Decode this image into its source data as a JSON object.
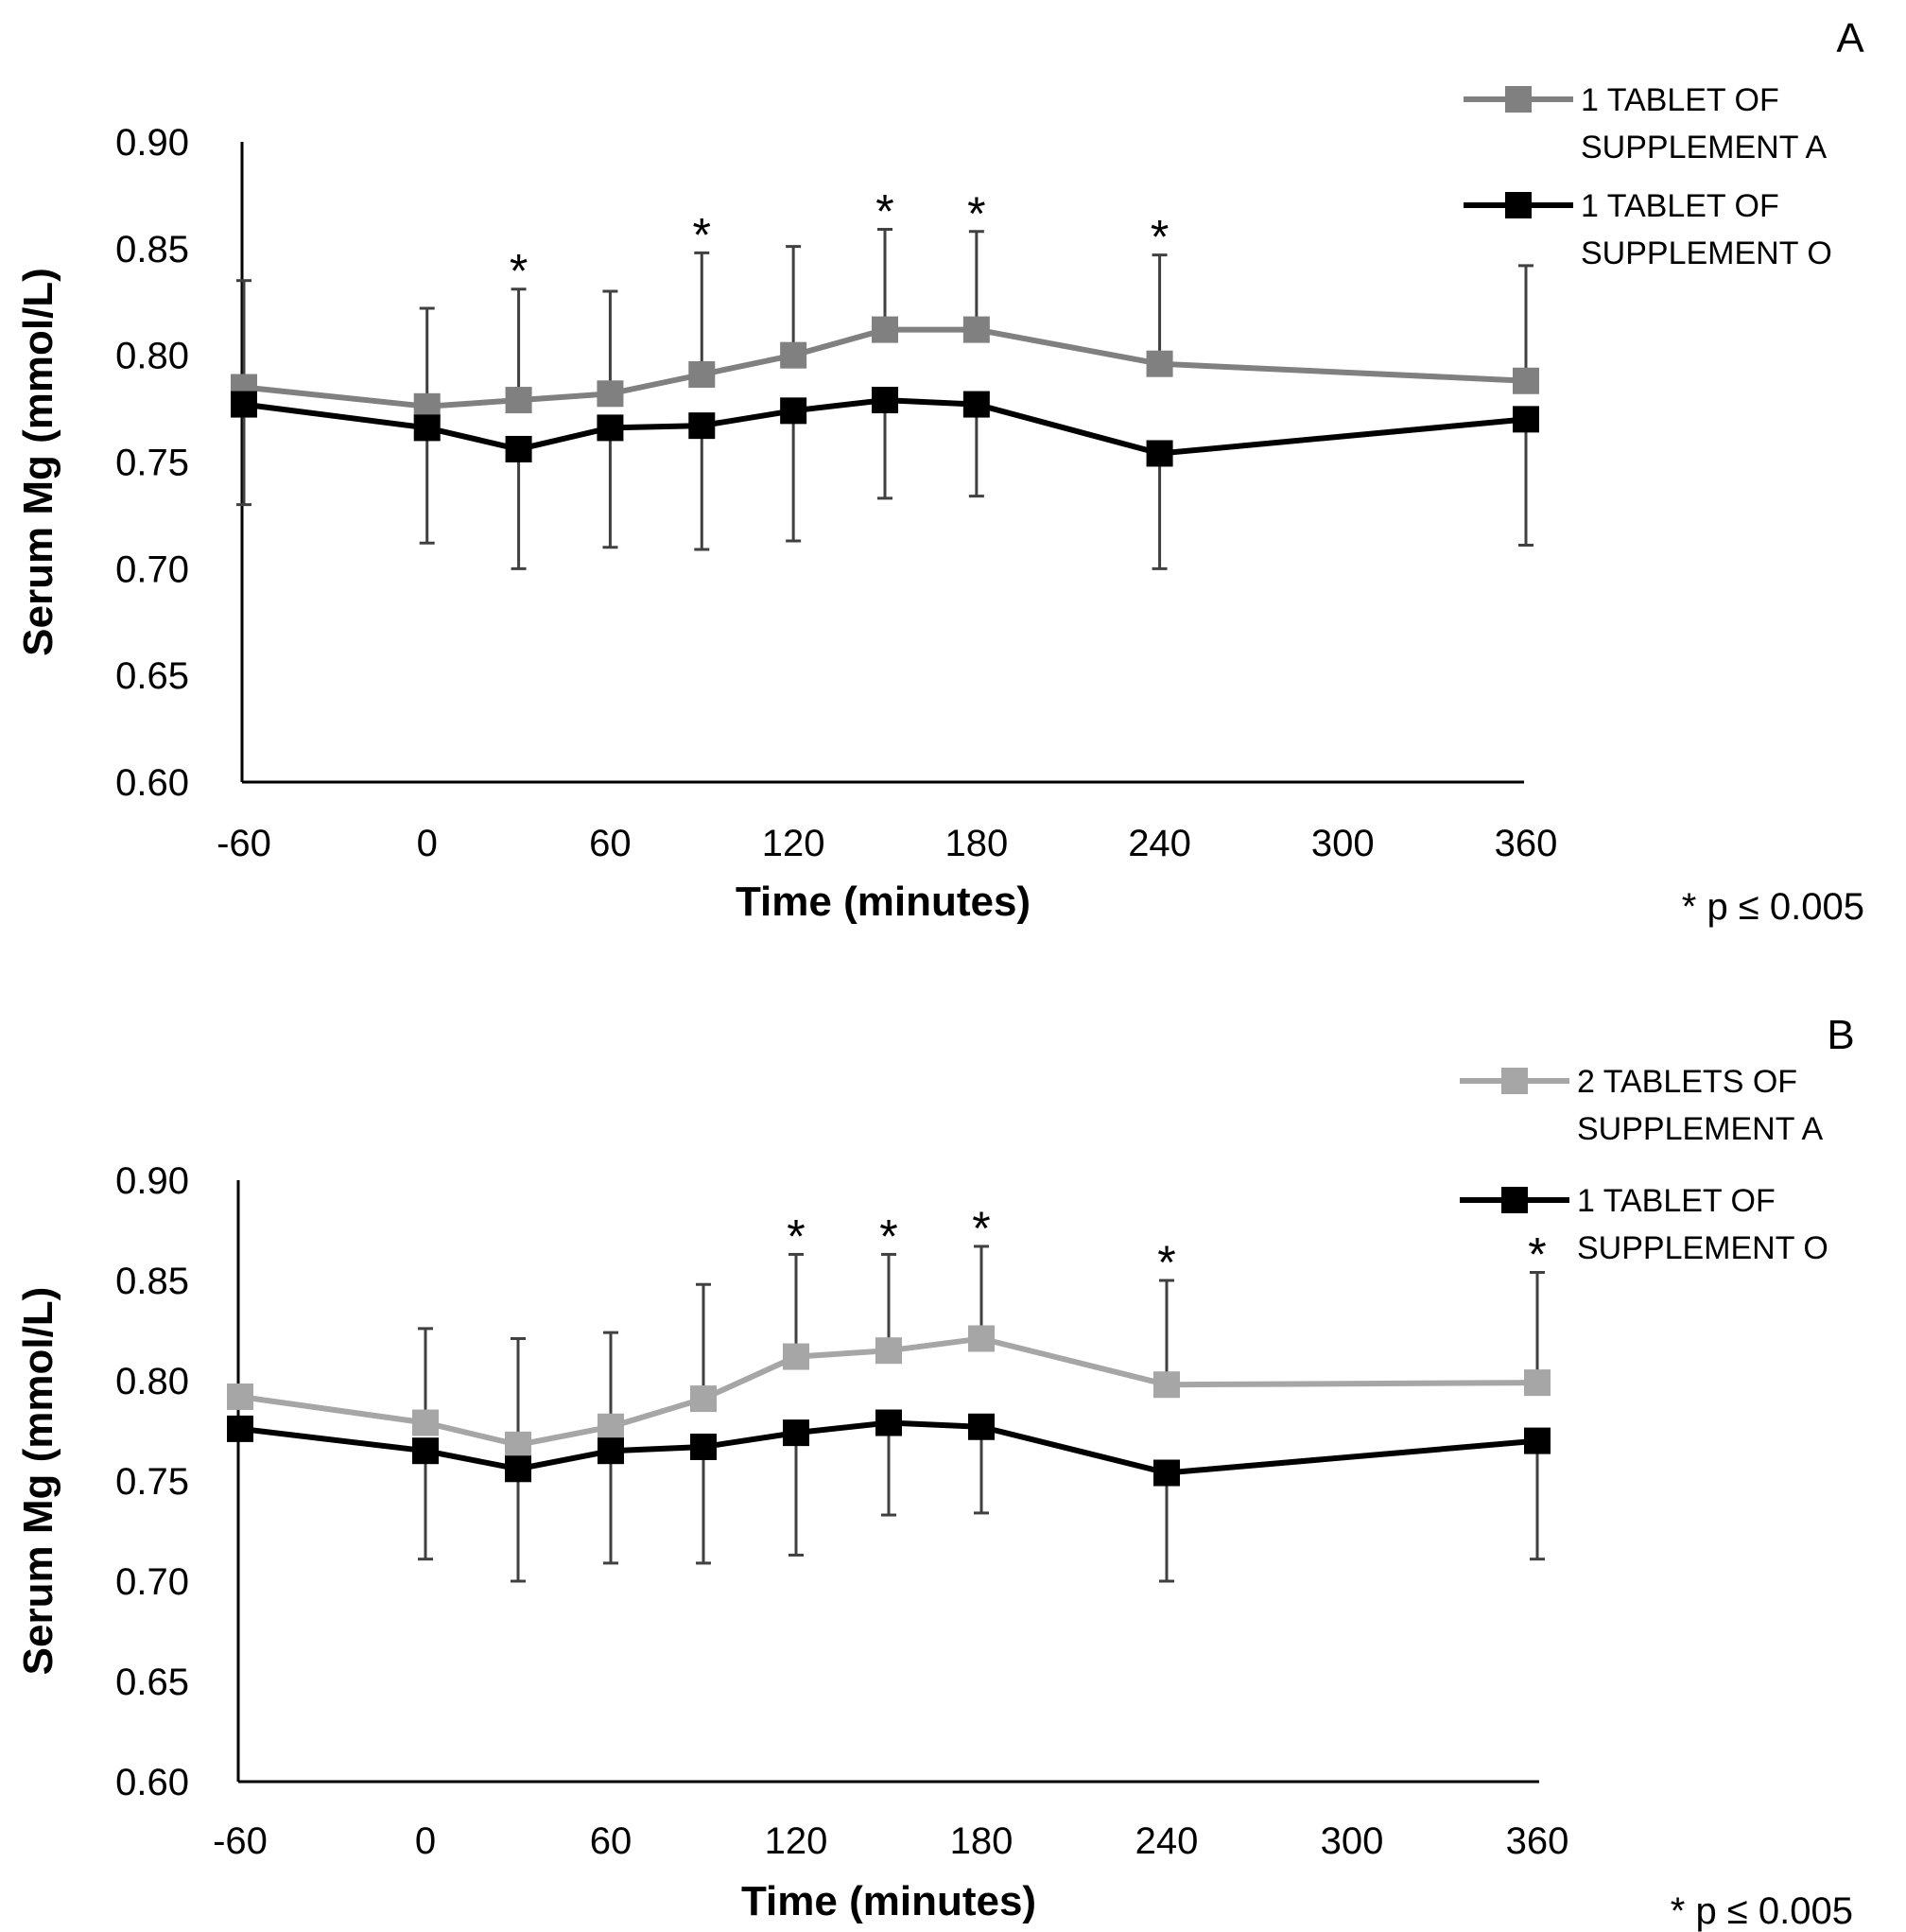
{
  "chart_data": [
    {
      "type": "line",
      "panel_label": "A",
      "xlabel": "Time (minutes)",
      "ylabel": "Serum Mg (mmol/L)",
      "xlim": [
        -60,
        360
      ],
      "ylim": [
        0.6,
        0.9
      ],
      "x_ticks": [
        "-60",
        "0",
        "60",
        "120",
        "180",
        "240",
        "300",
        "360"
      ],
      "y_ticks": [
        "0.60",
        "0.65",
        "0.70",
        "0.75",
        "0.80",
        "0.85",
        "0.90"
      ],
      "x": [
        -60,
        0,
        30,
        60,
        90,
        120,
        150,
        180,
        240,
        360
      ],
      "series": [
        {
          "name": "1 TABLET OF SUPPLEMENT A",
          "legend_lines": [
            "1 TABLET OF",
            "SUPPLEMENT A"
          ],
          "color": "#808080",
          "values": [
            0.785,
            0.776,
            0.779,
            0.782,
            0.791,
            0.8,
            0.812,
            0.812,
            0.796,
            0.788
          ],
          "error": [
            0.05,
            0.046,
            0.052,
            0.048,
            0.057,
            0.051,
            0.047,
            0.046,
            0.051,
            0.054
          ],
          "error_side": "up"
        },
        {
          "name": "1 TABLET OF SUPPLEMENT O",
          "legend_lines": [
            "1 TABLET OF",
            "SUPPLEMENT O"
          ],
          "color": "#000000",
          "values": [
            0.777,
            0.766,
            0.756,
            0.766,
            0.767,
            0.774,
            0.779,
            0.777,
            0.754,
            0.77
          ],
          "error": [
            0.047,
            0.054,
            0.056,
            0.056,
            0.058,
            0.061,
            0.046,
            0.043,
            0.054,
            0.059
          ],
          "error_side": "down"
        }
      ],
      "significant_x": [
        30,
        90,
        150,
        180,
        240
      ],
      "sig_symbol": "*",
      "note": "* p ≤ 0.005"
    },
    {
      "type": "line",
      "panel_label": "B",
      "xlabel": "Time (minutes)",
      "ylabel": "Serum Mg (mmol/L)",
      "xlim": [
        -60,
        360
      ],
      "ylim": [
        0.6,
        0.9
      ],
      "x_ticks": [
        "-60",
        "0",
        "60",
        "120",
        "180",
        "240",
        "300",
        "360"
      ],
      "y_ticks": [
        "0.60",
        "0.65",
        "0.70",
        "0.75",
        "0.80",
        "0.85",
        "0.90"
      ],
      "x": [
        -60,
        0,
        30,
        60,
        90,
        120,
        150,
        180,
        240,
        360
      ],
      "series": [
        {
          "name": "2 TABLETS OF SUPPLEMENT A",
          "legend_lines": [
            "2 TABLETS OF",
            "SUPPLEMENT A"
          ],
          "color": "#a6a6a6",
          "values": [
            0.792,
            0.779,
            0.768,
            0.777,
            0.791,
            0.812,
            0.815,
            0.821,
            0.798,
            0.799
          ],
          "error": [
            0.0,
            0.047,
            0.053,
            0.047,
            0.057,
            0.051,
            0.048,
            0.046,
            0.052,
            0.055
          ],
          "error_side": "up"
        },
        {
          "name": "1 TABLET OF SUPPLEMENT O",
          "legend_lines": [
            "1 TABLET OF",
            "SUPPLEMENT O"
          ],
          "color": "#000000",
          "values": [
            0.776,
            0.765,
            0.756,
            0.765,
            0.767,
            0.774,
            0.779,
            0.777,
            0.754,
            0.77
          ],
          "error": [
            0.0,
            0.054,
            0.056,
            0.056,
            0.058,
            0.061,
            0.046,
            0.043,
            0.054,
            0.059
          ],
          "error_side": "down"
        }
      ],
      "significant_x": [
        120,
        150,
        180,
        240,
        360
      ],
      "sig_symbol": "*",
      "note": "* p ≤ 0.005"
    }
  ]
}
